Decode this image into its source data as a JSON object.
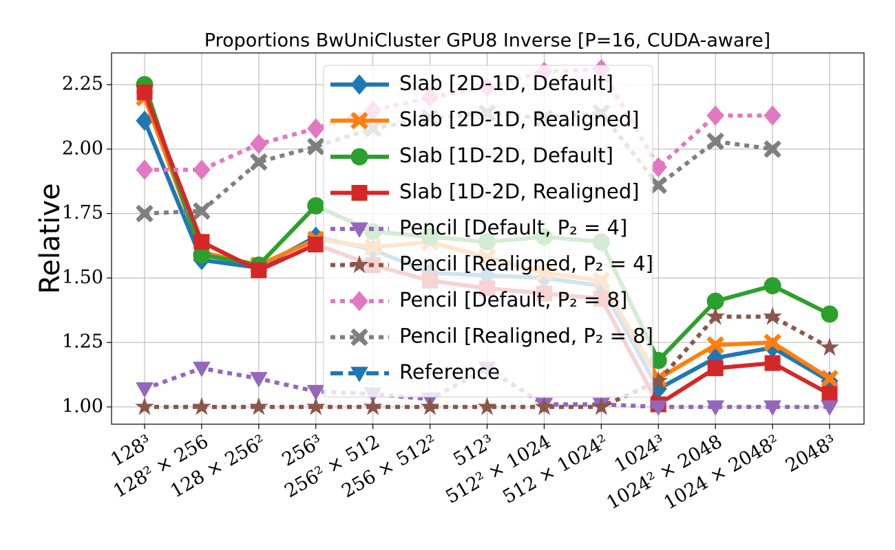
{
  "chart_data": {
    "type": "line",
    "title": "Proportions BwUniCluster GPU8 Inverse [P=16, CUDA-aware]",
    "y_label": "Relative",
    "categories": [
      "128³",
      "128² × 256",
      "128 × 256²",
      "256³",
      "256² × 512",
      "256 × 512²",
      "512³",
      "512² × 1024",
      "512 × 1024²",
      "1024³",
      "1024² × 2048",
      "1024 × 2048²",
      "2048³"
    ],
    "ylim": [
      0.933,
      2.373
    ],
    "yticks": [
      {
        "value": 1.0,
        "label": "1.00"
      },
      {
        "value": 1.25,
        "label": "1.25"
      },
      {
        "value": 1.5,
        "label": "1.50"
      },
      {
        "value": 1.75,
        "label": "1.75"
      },
      {
        "value": 2.0,
        "label": "2.00"
      },
      {
        "value": 2.25,
        "label": "2.25"
      }
    ],
    "grid": true,
    "legend": "upper center",
    "series": [
      {
        "name": "Slab [2D-1D, Default]",
        "color": "#1f77b4",
        "marker": "diamond",
        "dash": "solid",
        "values": [
          2.11,
          1.57,
          1.54,
          1.66,
          1.61,
          1.52,
          1.51,
          1.5,
          1.47,
          1.07,
          1.19,
          1.23,
          1.1
        ]
      },
      {
        "name": "Slab [2D-1D, Realigned]",
        "color": "#ff7f0e",
        "marker": "x",
        "dash": "solid",
        "values": [
          2.2,
          1.6,
          1.55,
          1.65,
          1.62,
          1.64,
          1.58,
          1.52,
          1.49,
          1.11,
          1.24,
          1.25,
          1.11
        ]
      },
      {
        "name": "Slab [1D-2D, Default]",
        "color": "#2ca02c",
        "marker": "circle",
        "dash": "solid",
        "values": [
          2.25,
          1.59,
          1.55,
          1.78,
          1.68,
          1.66,
          1.64,
          1.66,
          1.64,
          1.18,
          1.41,
          1.47,
          1.36
        ]
      },
      {
        "name": "Slab [1D-2D, Realigned]",
        "color": "#d62728",
        "marker": "square",
        "dash": "solid",
        "values": [
          2.22,
          1.64,
          1.53,
          1.63,
          1.55,
          1.49,
          1.46,
          1.44,
          1.42,
          1.01,
          1.15,
          1.17,
          1.05
        ]
      },
      {
        "name": "Pencil [Default, P₂ = 4]",
        "color": "#9467bd",
        "marker": "triangle",
        "dash": "dotted",
        "values": [
          1.07,
          1.15,
          1.11,
          1.06,
          1.05,
          1.03,
          1.15,
          1.01,
          1.01,
          1.0,
          1.0,
          1.0,
          1.0
        ]
      },
      {
        "name": "Pencil [Realigned, P₂ = 4]",
        "color": "#8c564b",
        "marker": "star",
        "dash": "dotted",
        "values": [
          1.0,
          1.0,
          1.0,
          1.0,
          1.0,
          1.0,
          1.0,
          1.0,
          1.0,
          1.1,
          1.35,
          1.35,
          1.23
        ]
      },
      {
        "name": "Pencil [Default, P₂ = 8]",
        "color": "#e377c2",
        "marker": "diamond",
        "dash": "dotted",
        "values": [
          1.92,
          1.92,
          2.02,
          2.08,
          2.15,
          2.2,
          2.24,
          2.3,
          2.31,
          1.93,
          2.13,
          2.13,
          null
        ]
      },
      {
        "name": "Pencil [Realigned, P₂ = 8]",
        "color": "#7f7f7f",
        "marker": "x",
        "dash": "dotted",
        "values": [
          1.75,
          1.76,
          1.95,
          2.01,
          2.08,
          2.12,
          2.14,
          2.12,
          2.14,
          1.86,
          2.03,
          2.0,
          null
        ]
      },
      {
        "name": "Reference",
        "color": "#1f77b4",
        "marker": "triangle",
        "dash": "dashed",
        "values": [
          null,
          null,
          null,
          null,
          null,
          null,
          null,
          null,
          null,
          null,
          null,
          null,
          null
        ]
      }
    ]
  }
}
